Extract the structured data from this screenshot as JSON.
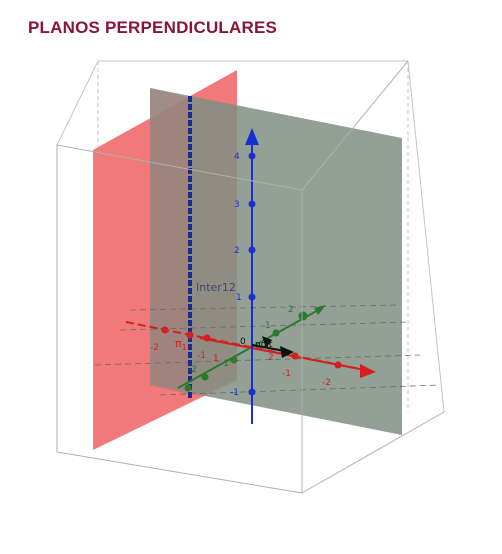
{
  "title": "PLANOS PERPENDICULARES",
  "colors": {
    "title": "#8a1538",
    "red_plane": "#f06a6a",
    "gray_plane": "#7f8f83",
    "x_axis": "#d42020",
    "y_axis": "#2a7a2a",
    "z_axis": "#1a2fd0",
    "intersection": "#1a2a90",
    "box": "#b0b0b0"
  },
  "labels": {
    "intersection": "Inter12",
    "origin": "0",
    "point_a": "nolt",
    "pi_label": "π",
    "pi_sub": "1"
  },
  "axes": {
    "z": [
      "4",
      "3",
      "2",
      "1",
      "-1"
    ],
    "x": [
      "-2",
      "-1",
      "1",
      "2",
      "-1",
      "-2"
    ],
    "y": [
      "2",
      "1",
      "-1",
      "-2"
    ]
  }
}
